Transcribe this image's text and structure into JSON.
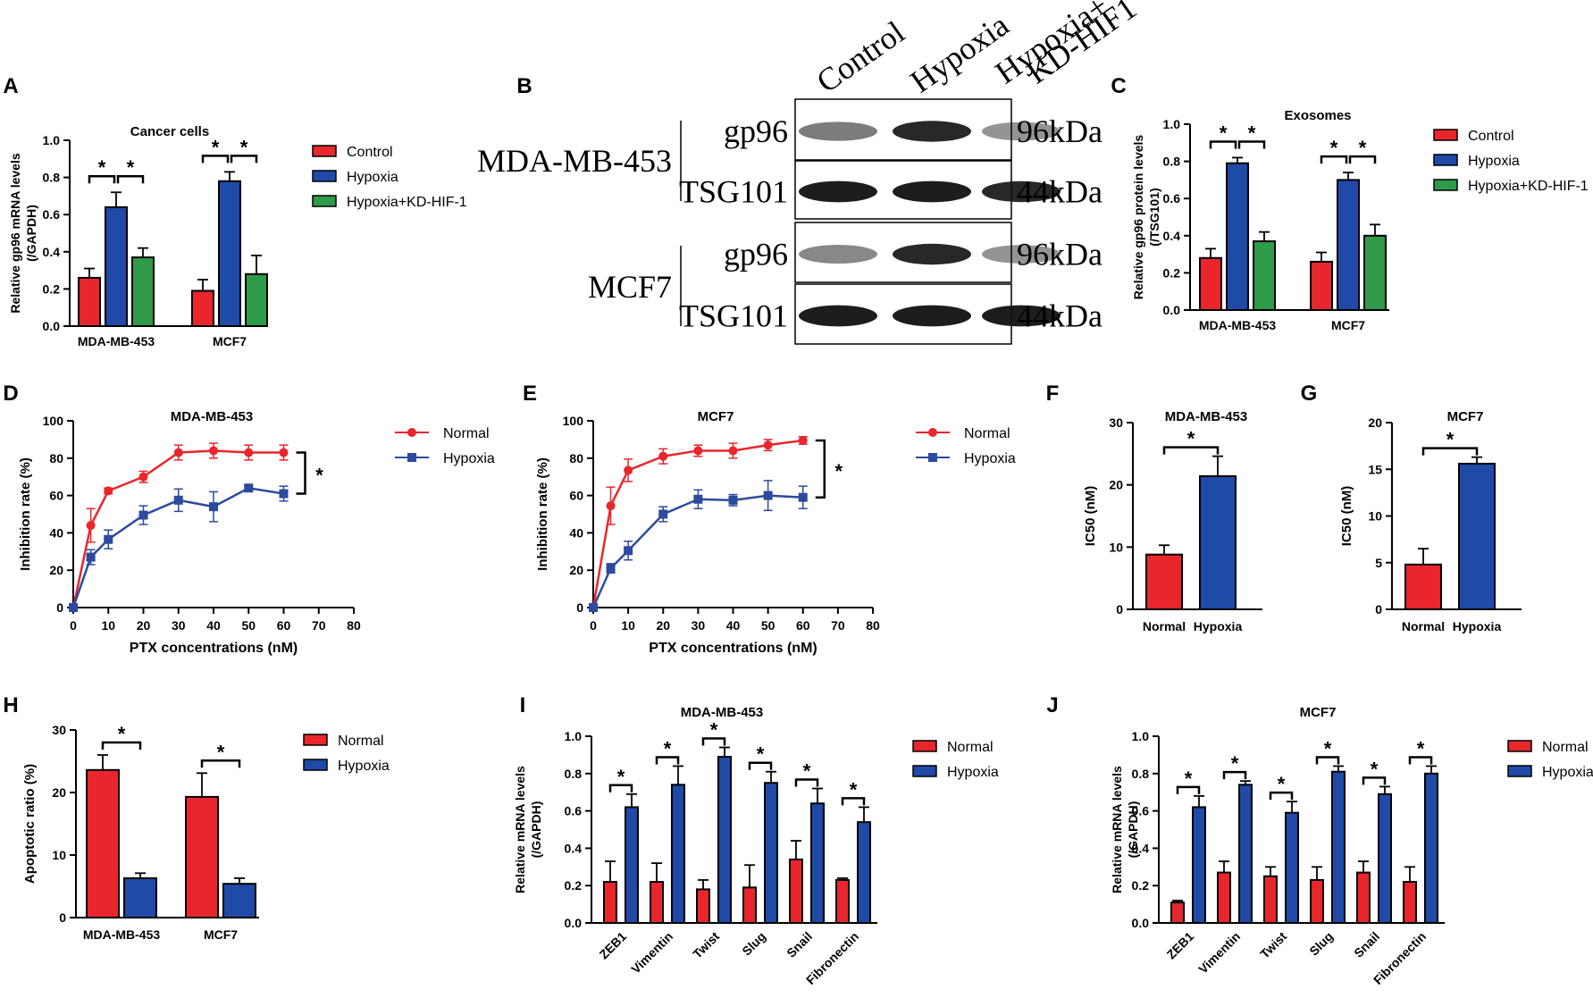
{
  "colors": {
    "control": "#e8262c",
    "hypoxia": "#1f4aa8",
    "kd": "#2e9a4a",
    "normal_line": "#e8262c",
    "hypoxia_line": "#2c4a9e",
    "axis": "#000000"
  },
  "panels": {
    "A": {
      "letter": "A",
      "title": "Cancer cells",
      "ylabel": [
        "Relative gp96 mRNA levels",
        "(/GAPDH)"
      ],
      "yticks": [
        "0.0",
        "0.2",
        "0.4",
        "0.6",
        "0.8",
        "1.0"
      ],
      "sig": "*"
    },
    "B": {
      "letter": "B",
      "lanes": [
        "Control",
        "Hypoxia",
        "Hypoxia+",
        "KD-HIF1"
      ],
      "cell_lines": [
        "MDA-MB-453",
        "MCF7"
      ],
      "proteins": [
        "gp96",
        "TSG101",
        "gp96",
        "TSG101"
      ],
      "sizes": [
        "96kDa",
        "44kDa",
        "96kDa",
        "44kDa"
      ]
    },
    "C": {
      "letter": "C",
      "title": "Exosomes",
      "ylabel": [
        "Relative gp96 protein levels",
        "(/TSG101)"
      ],
      "yticks": [
        "0.0",
        "0.2",
        "0.4",
        "0.6",
        "0.8",
        "1.0"
      ],
      "sig": "*"
    },
    "D": {
      "letter": "D",
      "title": "MDA-MB-453",
      "ylabel": "Inhibition rate (%)",
      "xlabel": "PTX concentrations (nM)",
      "sig": "*"
    },
    "E": {
      "letter": "E",
      "title": "MCF7",
      "ylabel": "Inhibition rate (%)",
      "xlabel": "PTX concentrations (nM)",
      "sig": "*"
    },
    "F": {
      "letter": "F",
      "title": "MDA-MB-453",
      "ylabel": "IC50 (nM)",
      "sig": "*"
    },
    "G": {
      "letter": "G",
      "title": "MCF7",
      "ylabel": "IC50 (nM)",
      "sig": "*"
    },
    "H": {
      "letter": "H",
      "ylabel": "Apoptotic ratio (%)",
      "sig": "*"
    },
    "I": {
      "letter": "I",
      "title": "MDA-MB-453",
      "ylabel": [
        "Relative mRNA levels",
        "(/GAPDH)"
      ],
      "sig": "*"
    },
    "J": {
      "letter": "J",
      "title": "MCF7",
      "ylabel": [
        "Relative mRNA levels",
        "(/GAPDH)"
      ],
      "sig": "*"
    }
  },
  "legends": {
    "three": [
      "Control",
      "Hypoxia",
      "Hypoxia+KD-HIF-1"
    ],
    "two": [
      "Normal",
      "Hypoxia"
    ]
  },
  "chart_data": [
    {
      "panel": "A",
      "type": "bar",
      "title": "Cancer cells",
      "ylabel": "Relative gp96 mRNA levels (/GAPDH)",
      "categories": [
        "MDA-MB-453",
        "MCF7"
      ],
      "ylim": [
        0,
        1.0
      ],
      "series": [
        {
          "name": "Control",
          "values": [
            0.26,
            0.19
          ],
          "errors": [
            0.05,
            0.06
          ]
        },
        {
          "name": "Hypoxia",
          "values": [
            0.64,
            0.78
          ],
          "errors": [
            0.08,
            0.05
          ]
        },
        {
          "name": "Hypoxia+KD-HIF-1",
          "values": [
            0.37,
            0.28
          ],
          "errors": [
            0.05,
            0.1
          ]
        }
      ]
    },
    {
      "panel": "C",
      "type": "bar",
      "title": "Exosomes",
      "ylabel": "Relative gp96 protein levels (/TSG101)",
      "categories": [
        "MDA-MB-453",
        "MCF7"
      ],
      "ylim": [
        0,
        1.0
      ],
      "series": [
        {
          "name": "Control",
          "values": [
            0.28,
            0.26
          ],
          "errors": [
            0.05,
            0.05
          ]
        },
        {
          "name": "Hypoxia",
          "values": [
            0.79,
            0.7
          ],
          "errors": [
            0.03,
            0.04
          ]
        },
        {
          "name": "Hypoxia+KD-HIF-1",
          "values": [
            0.37,
            0.4
          ],
          "errors": [
            0.05,
            0.06
          ]
        }
      ]
    },
    {
      "panel": "D",
      "type": "line",
      "title": "MDA-MB-453",
      "xlabel": "PTX concentrations (nM)",
      "ylabel": "Inhibition rate (%)",
      "xlim": [
        0,
        80
      ],
      "ylim": [
        0,
        100
      ],
      "xticks": [
        0,
        10,
        20,
        30,
        40,
        50,
        60,
        70,
        80
      ],
      "yticks": [
        0,
        20,
        40,
        60,
        80,
        100
      ],
      "x": [
        0,
        5,
        10,
        20,
        30,
        40,
        50,
        60
      ],
      "series": [
        {
          "name": "Normal",
          "values": [
            0,
            44,
            62.5,
            70,
            83,
            84,
            83,
            83
          ],
          "errors": [
            0,
            9,
            1.5,
            3,
            4,
            4,
            4,
            4
          ]
        },
        {
          "name": "Hypoxia",
          "values": [
            0,
            27,
            36.5,
            49.5,
            57.5,
            54,
            64,
            61
          ],
          "errors": [
            0,
            4,
            5,
            5,
            6,
            8,
            1.5,
            4
          ]
        }
      ]
    },
    {
      "panel": "E",
      "type": "line",
      "title": "MCF7",
      "xlabel": "PTX concentrations (nM)",
      "ylabel": "Inhibition rate (%)",
      "xlim": [
        0,
        80
      ],
      "ylim": [
        0,
        100
      ],
      "xticks": [
        0,
        10,
        20,
        30,
        40,
        50,
        60,
        70,
        80
      ],
      "yticks": [
        0,
        20,
        40,
        60,
        80,
        100
      ],
      "x": [
        0,
        5,
        10,
        20,
        30,
        40,
        50,
        60
      ],
      "series": [
        {
          "name": "Normal",
          "values": [
            0,
            54.5,
            73.5,
            81,
            84,
            84,
            87,
            89.5
          ],
          "errors": [
            0,
            10,
            6,
            4,
            3,
            4,
            3,
            2
          ]
        },
        {
          "name": "Hypoxia",
          "values": [
            0,
            21,
            30.5,
            50,
            58,
            57.5,
            60,
            59
          ],
          "errors": [
            0,
            2.5,
            5,
            4,
            5,
            3,
            8,
            6
          ]
        }
      ]
    },
    {
      "panel": "F",
      "type": "bar",
      "title": "MDA-MB-453",
      "ylabel": "IC50 (nM)",
      "categories": [
        "Normal",
        "Hypoxia"
      ],
      "ylim": [
        0,
        30
      ],
      "yticks": [
        0,
        10,
        20,
        30
      ],
      "values": [
        8.8,
        21.4
      ],
      "errors": [
        1.5,
        3.2
      ]
    },
    {
      "panel": "G",
      "type": "bar",
      "title": "MCF7",
      "ylabel": "IC50 (nM)",
      "categories": [
        "Normal",
        "Hypoxia"
      ],
      "ylim": [
        0,
        20
      ],
      "yticks": [
        0,
        5,
        10,
        15,
        20
      ],
      "values": [
        4.8,
        15.6
      ],
      "errors": [
        1.7,
        0.7
      ]
    },
    {
      "panel": "H",
      "type": "bar",
      "ylabel": "Apoptotic ratio (%)",
      "categories": [
        "MDA-MB-453",
        "MCF7"
      ],
      "ylim": [
        0,
        30
      ],
      "yticks": [
        0,
        10,
        20,
        30
      ],
      "series": [
        {
          "name": "Normal",
          "values": [
            23.6,
            19.3
          ],
          "errors": [
            2.4,
            3.8
          ]
        },
        {
          "name": "Hypoxia",
          "values": [
            6.3,
            5.4
          ],
          "errors": [
            0.8,
            0.9
          ]
        }
      ]
    },
    {
      "panel": "I",
      "type": "bar",
      "title": "MDA-MB-453",
      "ylabel": "Relative mRNA levels (/GAPDH)",
      "categories": [
        "ZEB1",
        "Vimentin",
        "Twist",
        "Slug",
        "Snail",
        "Fibronectin"
      ],
      "ylim": [
        0,
        1.0
      ],
      "yticks": [
        "0.0",
        "0.2",
        "0.4",
        "0.6",
        "0.8",
        "1.0"
      ],
      "series": [
        {
          "name": "Normal",
          "values": [
            0.22,
            0.22,
            0.18,
            0.19,
            0.34,
            0.23
          ],
          "errors": [
            0.11,
            0.1,
            0.05,
            0.12,
            0.1,
            0.01
          ]
        },
        {
          "name": "Hypoxia",
          "values": [
            0.62,
            0.74,
            0.89,
            0.75,
            0.64,
            0.54
          ],
          "errors": [
            0.07,
            0.1,
            0.05,
            0.06,
            0.08,
            0.08
          ]
        }
      ]
    },
    {
      "panel": "J",
      "type": "bar",
      "title": "MCF7",
      "ylabel": "Relative mRNA levels (/GAPDH)",
      "categories": [
        "ZEB1",
        "Vimentin",
        "Twist",
        "Slug",
        "Snail",
        "Fibronectin"
      ],
      "ylim": [
        0,
        1.0
      ],
      "yticks": [
        "0.0",
        "0.2",
        "0.4",
        "0.6",
        "0.8",
        "1.0"
      ],
      "series": [
        {
          "name": "Normal",
          "values": [
            0.11,
            0.27,
            0.25,
            0.23,
            0.27,
            0.22
          ],
          "errors": [
            0.01,
            0.06,
            0.05,
            0.07,
            0.06,
            0.08
          ]
        },
        {
          "name": "Hypoxia",
          "values": [
            0.62,
            0.74,
            0.59,
            0.81,
            0.69,
            0.8
          ],
          "errors": [
            0.06,
            0.02,
            0.06,
            0.03,
            0.04,
            0.04
          ]
        }
      ]
    }
  ]
}
